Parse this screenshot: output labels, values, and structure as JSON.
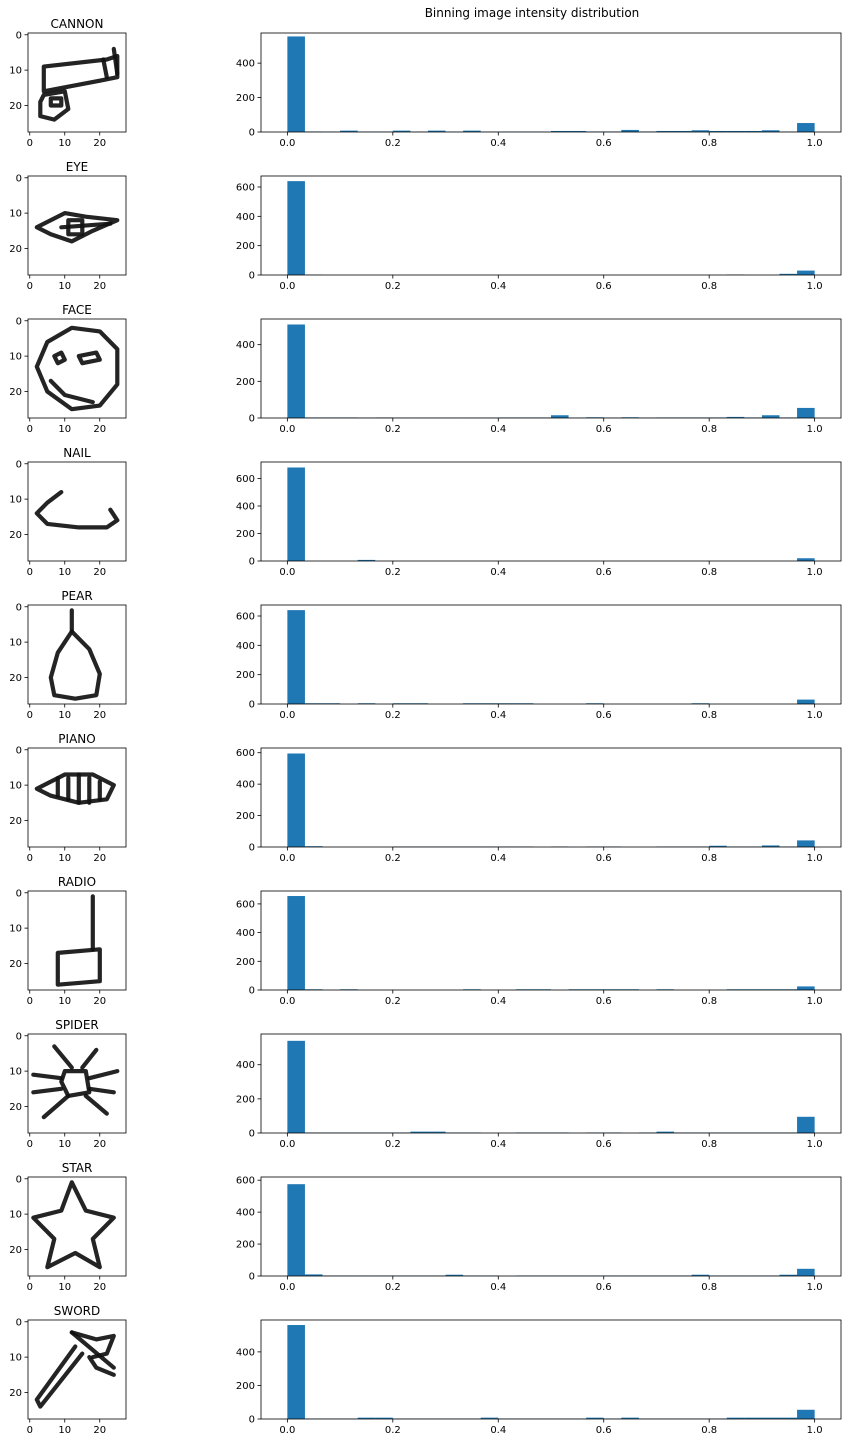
{
  "figure": {
    "suptitle": "Binning image intensity distribution"
  },
  "colors": {
    "bar": "#1f77b4",
    "axis": "#000000",
    "background": "#ffffff"
  },
  "chart_data": [
    {
      "type": "image",
      "title": "CANNON",
      "xticks": [
        "0",
        "10",
        "20"
      ],
      "yticks": [
        "0",
        "10",
        "20"
      ],
      "strokes": [
        [
          [
            4,
            9
          ],
          [
            22,
            7
          ],
          [
            25,
            6
          ],
          [
            25,
            12
          ],
          [
            20,
            13
          ],
          [
            4,
            16
          ],
          [
            4,
            9
          ]
        ],
        [
          [
            21,
            7
          ],
          [
            22,
            12
          ]
        ],
        [
          [
            24,
            4
          ],
          [
            25,
            11
          ]
        ],
        [
          [
            4,
            17
          ],
          [
            10,
            16
          ],
          [
            11,
            21
          ],
          [
            7,
            24
          ],
          [
            3,
            23
          ],
          [
            3,
            19
          ],
          [
            4,
            17
          ]
        ],
        [
          [
            6,
            18
          ],
          [
            9,
            18
          ],
          [
            9,
            20
          ],
          [
            6,
            20
          ],
          [
            6,
            18
          ]
        ]
      ]
    },
    {
      "type": "bar",
      "title": "",
      "xlim": [
        -0.05,
        1.05
      ],
      "ylim": [
        0,
        575
      ],
      "xticks": [
        "0.0",
        "0.2",
        "0.4",
        "0.6",
        "0.8",
        "1.0"
      ],
      "yticks": [
        "0",
        "200",
        "400"
      ],
      "bins": 30,
      "values": [
        555,
        3,
        2,
        8,
        2,
        2,
        8,
        2,
        8,
        2,
        8,
        2,
        2,
        2,
        2,
        6,
        6,
        3,
        3,
        12,
        3,
        6,
        6,
        10,
        6,
        6,
        6,
        10,
        2,
        52
      ]
    },
    {
      "type": "image",
      "title": "EYE",
      "xticks": [
        "0",
        "10",
        "20"
      ],
      "yticks": [
        "0",
        "10",
        "20"
      ],
      "strokes": [
        [
          [
            2,
            14
          ],
          [
            10,
            10
          ],
          [
            16,
            11
          ],
          [
            25,
            12
          ],
          [
            18,
            15
          ],
          [
            12,
            18
          ],
          [
            6,
            16
          ],
          [
            2,
            14
          ]
        ],
        [
          [
            11,
            12
          ],
          [
            15,
            12
          ],
          [
            15,
            16
          ],
          [
            11,
            16
          ],
          [
            11,
            12
          ]
        ],
        [
          [
            9,
            14
          ],
          [
            23,
            13
          ]
        ]
      ]
    },
    {
      "type": "bar",
      "title": "",
      "xlim": [
        -0.05,
        1.05
      ],
      "ylim": [
        0,
        675
      ],
      "xticks": [
        "0.0",
        "0.2",
        "0.4",
        "0.6",
        "0.8",
        "1.0"
      ],
      "yticks": [
        "0",
        "200",
        "400",
        "600"
      ],
      "bins": 30,
      "values": [
        640,
        2,
        0,
        0,
        0,
        0,
        0,
        0,
        0,
        0,
        0,
        0,
        0,
        0,
        0,
        0,
        0,
        0,
        0,
        0,
        0,
        0,
        0,
        0,
        0,
        3,
        0,
        0,
        8,
        30
      ]
    },
    {
      "type": "image",
      "title": "FACE",
      "xticks": [
        "0",
        "10",
        "20"
      ],
      "yticks": [
        "0",
        "10",
        "20"
      ],
      "strokes": [
        [
          [
            5,
            6
          ],
          [
            12,
            2
          ],
          [
            20,
            3
          ],
          [
            25,
            8
          ],
          [
            25,
            18
          ],
          [
            20,
            24
          ],
          [
            12,
            25
          ],
          [
            5,
            20
          ],
          [
            2,
            13
          ],
          [
            5,
            6
          ]
        ],
        [
          [
            7,
            10
          ],
          [
            9,
            9
          ],
          [
            10,
            11
          ],
          [
            8,
            12
          ],
          [
            7,
            10
          ]
        ],
        [
          [
            14,
            10
          ],
          [
            19,
            9
          ],
          [
            20,
            11
          ],
          [
            15,
            12
          ],
          [
            14,
            10
          ]
        ],
        [
          [
            6,
            17
          ],
          [
            10,
            21
          ],
          [
            18,
            23
          ]
        ]
      ]
    },
    {
      "type": "bar",
      "title": "",
      "xlim": [
        -0.05,
        1.05
      ],
      "ylim": [
        0,
        540
      ],
      "xticks": [
        "0.0",
        "0.2",
        "0.4",
        "0.6",
        "0.8",
        "1.0"
      ],
      "yticks": [
        "0",
        "200",
        "400"
      ],
      "bins": 30,
      "values": [
        510,
        3,
        3,
        3,
        2,
        3,
        2,
        2,
        2,
        2,
        2,
        2,
        3,
        3,
        3,
        15,
        2,
        4,
        2,
        4,
        2,
        3,
        3,
        3,
        3,
        6,
        3,
        15,
        3,
        55
      ]
    },
    {
      "type": "image",
      "title": "NAIL",
      "xticks": [
        "0",
        "10",
        "20"
      ],
      "yticks": [
        "0",
        "10",
        "20"
      ],
      "strokes": [
        [
          [
            9,
            8
          ],
          [
            5,
            11
          ],
          [
            2,
            14
          ],
          [
            5,
            17
          ],
          [
            14,
            18
          ],
          [
            22,
            18
          ],
          [
            25,
            16
          ],
          [
            23,
            13
          ]
        ]
      ]
    },
    {
      "type": "bar",
      "title": "",
      "xlim": [
        -0.05,
        1.05
      ],
      "ylim": [
        0,
        720
      ],
      "xticks": [
        "0.0",
        "0.2",
        "0.4",
        "0.6",
        "0.8",
        "1.0"
      ],
      "yticks": [
        "0",
        "200",
        "400",
        "600"
      ],
      "bins": 30,
      "values": [
        680,
        0,
        0,
        0,
        8,
        0,
        0,
        0,
        0,
        0,
        0,
        0,
        0,
        0,
        0,
        0,
        0,
        0,
        0,
        0,
        0,
        0,
        0,
        0,
        0,
        0,
        0,
        0,
        0,
        20
      ]
    },
    {
      "type": "image",
      "title": "PEAR",
      "xticks": [
        "0",
        "10",
        "20"
      ],
      "yticks": [
        "0",
        "10",
        "20"
      ],
      "strokes": [
        [
          [
            12,
            1
          ],
          [
            12,
            7
          ]
        ],
        [
          [
            12,
            7
          ],
          [
            8,
            13
          ],
          [
            6,
            20
          ],
          [
            7,
            25
          ],
          [
            13,
            26
          ],
          [
            19,
            25
          ],
          [
            20,
            19
          ],
          [
            17,
            12
          ],
          [
            12,
            7
          ]
        ]
      ]
    },
    {
      "type": "bar",
      "title": "",
      "xlim": [
        -0.05,
        1.05
      ],
      "ylim": [
        0,
        675
      ],
      "xticks": [
        "0.0",
        "0.2",
        "0.4",
        "0.6",
        "0.8",
        "1.0"
      ],
      "yticks": [
        "0",
        "200",
        "400",
        "600"
      ],
      "bins": 30,
      "values": [
        640,
        5,
        5,
        0,
        5,
        0,
        5,
        5,
        0,
        0,
        5,
        5,
        5,
        5,
        0,
        0,
        0,
        5,
        0,
        0,
        0,
        0,
        0,
        5,
        0,
        0,
        0,
        0,
        0,
        30
      ]
    },
    {
      "type": "image",
      "title": "PIANO",
      "xticks": [
        "0",
        "10",
        "20"
      ],
      "yticks": [
        "0",
        "10",
        "20"
      ],
      "strokes": [
        [
          [
            2,
            11
          ],
          [
            10,
            7
          ],
          [
            18,
            7
          ],
          [
            24,
            10
          ],
          [
            22,
            14
          ],
          [
            14,
            15
          ],
          [
            6,
            13
          ],
          [
            2,
            11
          ]
        ],
        [
          [
            8,
            8
          ],
          [
            8,
            13
          ]
        ],
        [
          [
            11,
            8
          ],
          [
            11,
            14
          ]
        ],
        [
          [
            14,
            7
          ],
          [
            14,
            15
          ]
        ],
        [
          [
            17,
            8
          ],
          [
            17,
            15
          ]
        ],
        [
          [
            20,
            9
          ],
          [
            20,
            14
          ]
        ]
      ]
    },
    {
      "type": "bar",
      "title": "",
      "xlim": [
        -0.05,
        1.05
      ],
      "ylim": [
        0,
        630
      ],
      "xticks": [
        "0.0",
        "0.2",
        "0.4",
        "0.6",
        "0.8",
        "1.0"
      ],
      "yticks": [
        "0",
        "200",
        "400",
        "600"
      ],
      "bins": 30,
      "values": [
        595,
        5,
        0,
        0,
        0,
        0,
        3,
        3,
        3,
        3,
        3,
        3,
        3,
        3,
        0,
        3,
        0,
        3,
        3,
        0,
        0,
        3,
        3,
        3,
        8,
        3,
        3,
        10,
        3,
        42
      ]
    },
    {
      "type": "image",
      "title": "RADIO",
      "xticks": [
        "0",
        "10",
        "20"
      ],
      "yticks": [
        "0",
        "10",
        "20"
      ],
      "strokes": [
        [
          [
            18,
            1
          ],
          [
            18,
            16
          ]
        ],
        [
          [
            8,
            17
          ],
          [
            20,
            16
          ],
          [
            20,
            25
          ],
          [
            8,
            26
          ],
          [
            8,
            17
          ]
        ]
      ]
    },
    {
      "type": "bar",
      "title": "",
      "xlim": [
        -0.05,
        1.05
      ],
      "ylim": [
        0,
        690
      ],
      "xticks": [
        "0.0",
        "0.2",
        "0.4",
        "0.6",
        "0.8",
        "1.0"
      ],
      "yticks": [
        "0",
        "200",
        "400",
        "600"
      ],
      "bins": 30,
      "values": [
        655,
        5,
        0,
        5,
        0,
        0,
        0,
        0,
        0,
        0,
        5,
        0,
        0,
        5,
        5,
        0,
        5,
        5,
        5,
        5,
        0,
        5,
        0,
        0,
        0,
        5,
        5,
        5,
        5,
        25
      ]
    },
    {
      "type": "image",
      "title": "SPIDER",
      "xticks": [
        "0",
        "10",
        "20"
      ],
      "yticks": [
        "0",
        "10",
        "20"
      ],
      "strokes": [
        [
          [
            10,
            10
          ],
          [
            16,
            10
          ],
          [
            17,
            16
          ],
          [
            11,
            17
          ],
          [
            9,
            13
          ],
          [
            10,
            10
          ]
        ],
        [
          [
            12,
            9
          ],
          [
            7,
            3
          ]
        ],
        [
          [
            15,
            9
          ],
          [
            19,
            4
          ]
        ],
        [
          [
            9,
            12
          ],
          [
            1,
            11
          ]
        ],
        [
          [
            17,
            12
          ],
          [
            25,
            10
          ]
        ],
        [
          [
            9,
            15
          ],
          [
            1,
            16
          ]
        ],
        [
          [
            17,
            15
          ],
          [
            24,
            16
          ]
        ],
        [
          [
            11,
            17
          ],
          [
            4,
            23
          ]
        ],
        [
          [
            16,
            17
          ],
          [
            22,
            22
          ]
        ]
      ]
    },
    {
      "type": "bar",
      "title": "",
      "xlim": [
        -0.05,
        1.05
      ],
      "ylim": [
        0,
        580
      ],
      "xticks": [
        "0.0",
        "0.2",
        "0.4",
        "0.6",
        "0.8",
        "1.0"
      ],
      "yticks": [
        "0",
        "200",
        "400"
      ],
      "bins": 30,
      "values": [
        540,
        3,
        3,
        3,
        3,
        3,
        3,
        8,
        8,
        3,
        3,
        0,
        0,
        3,
        3,
        3,
        0,
        3,
        3,
        0,
        3,
        8,
        3,
        3,
        3,
        3,
        3,
        3,
        3,
        95
      ]
    },
    {
      "type": "image",
      "title": "STAR",
      "xticks": [
        "0",
        "10",
        "20"
      ],
      "yticks": [
        "0",
        "10",
        "20"
      ],
      "strokes": [
        [
          [
            12,
            1
          ],
          [
            16,
            9
          ],
          [
            24,
            11
          ],
          [
            18,
            17
          ],
          [
            20,
            25
          ],
          [
            13,
            21
          ],
          [
            5,
            25
          ],
          [
            7,
            17
          ],
          [
            1,
            11
          ],
          [
            9,
            9
          ],
          [
            12,
            1
          ]
        ]
      ]
    },
    {
      "type": "bar",
      "title": "",
      "xlim": [
        -0.05,
        1.05
      ],
      "ylim": [
        0,
        620
      ],
      "xticks": [
        "0.0",
        "0.2",
        "0.4",
        "0.6",
        "0.8",
        "1.0"
      ],
      "yticks": [
        "0",
        "200",
        "400",
        "600"
      ],
      "bins": 30,
      "values": [
        575,
        10,
        3,
        3,
        3,
        3,
        3,
        3,
        3,
        8,
        3,
        3,
        0,
        3,
        3,
        3,
        3,
        3,
        3,
        3,
        3,
        3,
        3,
        8,
        3,
        3,
        3,
        3,
        8,
        45
      ]
    },
    {
      "type": "image",
      "title": "SWORD",
      "xticks": [
        "0",
        "10",
        "20"
      ],
      "yticks": [
        "0",
        "10",
        "20"
      ],
      "strokes": [
        [
          [
            12,
            3
          ],
          [
            24,
            13
          ]
        ],
        [
          [
            12,
            3
          ],
          [
            19,
            5
          ],
          [
            24,
            4
          ],
          [
            22,
            9
          ],
          [
            18,
            10
          ]
        ],
        [
          [
            15,
            9
          ],
          [
            3,
            24
          ],
          [
            2,
            22
          ],
          [
            13,
            7
          ]
        ],
        [
          [
            17,
            10
          ],
          [
            19,
            13
          ],
          [
            24,
            15
          ]
        ]
      ]
    },
    {
      "type": "bar",
      "title": "",
      "xlim": [
        -0.05,
        1.05
      ],
      "ylim": [
        0,
        590
      ],
      "xticks": [
        "0.0",
        "0.2",
        "0.4",
        "0.6",
        "0.8",
        "1.0"
      ],
      "yticks": [
        "0",
        "200",
        "400"
      ],
      "bins": 30,
      "values": [
        560,
        3,
        3,
        3,
        8,
        8,
        3,
        3,
        3,
        3,
        3,
        8,
        3,
        3,
        3,
        3,
        3,
        8,
        3,
        8,
        3,
        3,
        3,
        3,
        3,
        8,
        8,
        8,
        8,
        55
      ]
    }
  ]
}
